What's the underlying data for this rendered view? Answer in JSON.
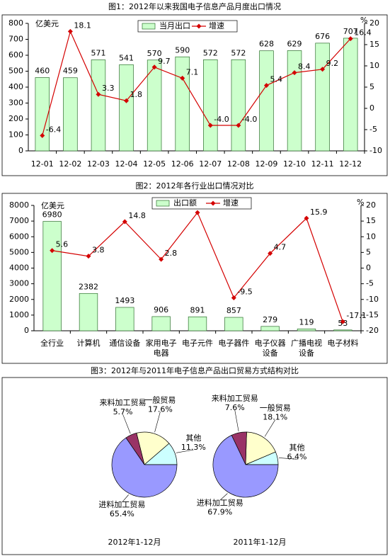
{
  "chart_data": [
    {
      "type": "bar-line",
      "title": "图1：2012年以来我国电子信息产品月度出口情况",
      "categories": [
        "12-01",
        "12-02",
        "12-03",
        "12-04",
        "12-05",
        "12-06",
        "12-07",
        "12-08",
        "12-09",
        "12-10",
        "12-11",
        "12-12"
      ],
      "series": [
        {
          "name": "当月出口",
          "color": "#ccffcc",
          "values": [
            460,
            459,
            571,
            541,
            570,
            590,
            572,
            572,
            628,
            629,
            676,
            707
          ]
        },
        {
          "name": "增速",
          "color": "#d40000",
          "axis": "y2",
          "values": [
            -6.4,
            18.1,
            3.3,
            1.8,
            9.7,
            7.1,
            -4.0,
            -4.0,
            5.4,
            8.4,
            9.2,
            16.4
          ],
          "value_labels": [
            "-6.4",
            "18.1",
            "3.3",
            "1.8",
            "9.7",
            "7.1",
            "-4.0",
            "-4.0",
            "5.4",
            "8.4",
            "9.2",
            "16.4"
          ]
        }
      ],
      "ylabel": "亿美元",
      "y2label": "%",
      "ylim": [
        0,
        800
      ],
      "yticks": [
        0,
        100,
        200,
        300,
        400,
        500,
        600,
        700,
        800
      ],
      "y2lim": [
        -10,
        20
      ],
      "y2ticks": [
        -10,
        -5,
        0,
        5,
        10,
        15,
        20
      ],
      "grid": false,
      "legend": "top"
    },
    {
      "type": "bar-line",
      "title": "图2：2012年各行业出口情况对比",
      "categories": [
        "全行业",
        "计算机",
        "通信设备",
        "家用电子电器",
        "电子元件",
        "电子器件",
        "电子仪器设备",
        "广播电视设备",
        "电子材料"
      ],
      "series": [
        {
          "name": "出口额",
          "color": "#ccffcc",
          "values": [
            6980,
            2382,
            1493,
            906,
            891,
            857,
            279,
            119,
            53
          ]
        },
        {
          "name": "增速",
          "color": "#d40000",
          "axis": "y2",
          "values": [
            5.6,
            3.8,
            14.8,
            2.8,
            17.7,
            -9.5,
            4.7,
            15.9,
            -17.1
          ]
        }
      ],
      "ylabel": "亿美元",
      "y2label": "%",
      "ylim": [
        0,
        8000
      ],
      "yticks": [
        0,
        1000,
        2000,
        3000,
        4000,
        5000,
        6000,
        7000,
        8000
      ],
      "y2lim": [
        -20,
        20
      ],
      "y2ticks": [
        -20,
        -15,
        -10,
        -5,
        0,
        5,
        10,
        15,
        20
      ],
      "grid": false,
      "legend": "top"
    },
    {
      "type": "pie",
      "title": "图3：2012年与2011年电子信息产品出口贸易方式结构对比",
      "pies": [
        {
          "caption": "2012年1-12月",
          "categories": [
            "其他",
            "一般贸易",
            "来料加工贸易",
            "进料加工贸易"
          ],
          "values": [
            11.3,
            17.6,
            5.7,
            65.4
          ],
          "value_labels": [
            "11.3%",
            "17.6%",
            "5.7%",
            "65.4%"
          ],
          "colors": [
            "#ccffff",
            "#ffffcc",
            "#993366",
            "#9999ff"
          ]
        },
        {
          "caption": "2011年1-12月",
          "categories": [
            "其他",
            "一般贸易",
            "来料加工贸易",
            "进料加工贸易"
          ],
          "values": [
            6.4,
            18.1,
            7.6,
            67.9
          ],
          "value_labels": [
            "6.4%",
            "18.1%",
            "7.6%",
            "67.9%"
          ],
          "colors": [
            "#ccffff",
            "#ffffcc",
            "#993366",
            "#9999ff"
          ]
        }
      ]
    }
  ]
}
